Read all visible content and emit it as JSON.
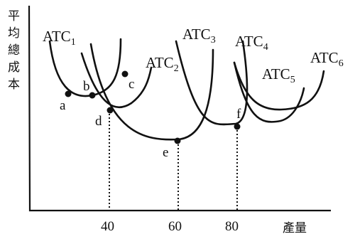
{
  "y_axis_label": [
    "平",
    "均",
    "總",
    "成",
    "本"
  ],
  "x_axis_label": "產量",
  "x_ticks": [
    "40",
    "60",
    "80"
  ],
  "curves": [
    {
      "base": "ATC",
      "sub": "1"
    },
    {
      "base": "ATC",
      "sub": "2"
    },
    {
      "base": "ATC",
      "sub": "3"
    },
    {
      "base": "ATC",
      "sub": "4"
    },
    {
      "base": "ATC",
      "sub": "5"
    },
    {
      "base": "ATC",
      "sub": "6"
    }
  ],
  "points": [
    "a",
    "b",
    "c",
    "d",
    "e",
    "f"
  ]
}
